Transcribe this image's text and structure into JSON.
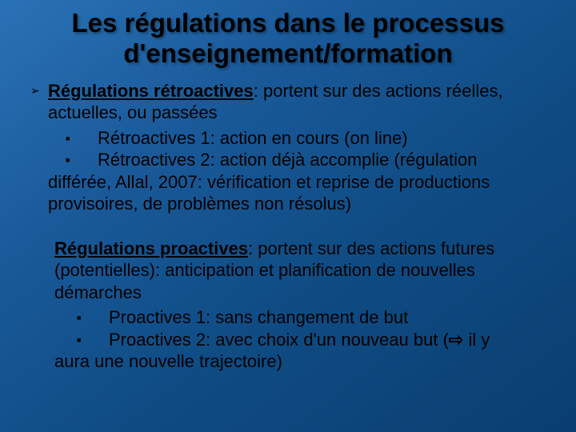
{
  "colors": {
    "bg_top": "#2a72b6",
    "bg_bottom": "#0a3e70",
    "text": "#000000"
  },
  "typography": {
    "title_pt": 33,
    "body_pt": 22,
    "family": "Arial"
  },
  "title_l1": "Les régulations dans le processus",
  "title_l2": "d'enseignement/formation",
  "block1": {
    "lead_head": "Régulations rétroactives",
    "lead_rest": ": portent sur des actions réelles, actuelles, ou passées",
    "sub1": "Rétroactives 1: action en cours (on line)",
    "sub2_first": "Rétroactives 2: action déjà accomplie (régulation",
    "sub2_wrap": "différée, Allal, 2007: vérification et reprise de productions provisoires, de problèmes non résolus)"
  },
  "block2": {
    "lead_head": "Régulations proactives",
    "lead_rest": ": portent sur des actions futures (potentielles): anticipation et planification de nouvelles démarches",
    "sub1": "Proactives 1: sans changement de but",
    "sub2_first_a": "Proactives 2: avec choix d'un nouveau but (",
    "arrow": "⇨",
    "sub2_first_b": " il y",
    "sub2_wrap": "aura une nouvelle trajectoire)"
  },
  "bullets": {
    "chevron": "➢",
    "square": "■"
  }
}
